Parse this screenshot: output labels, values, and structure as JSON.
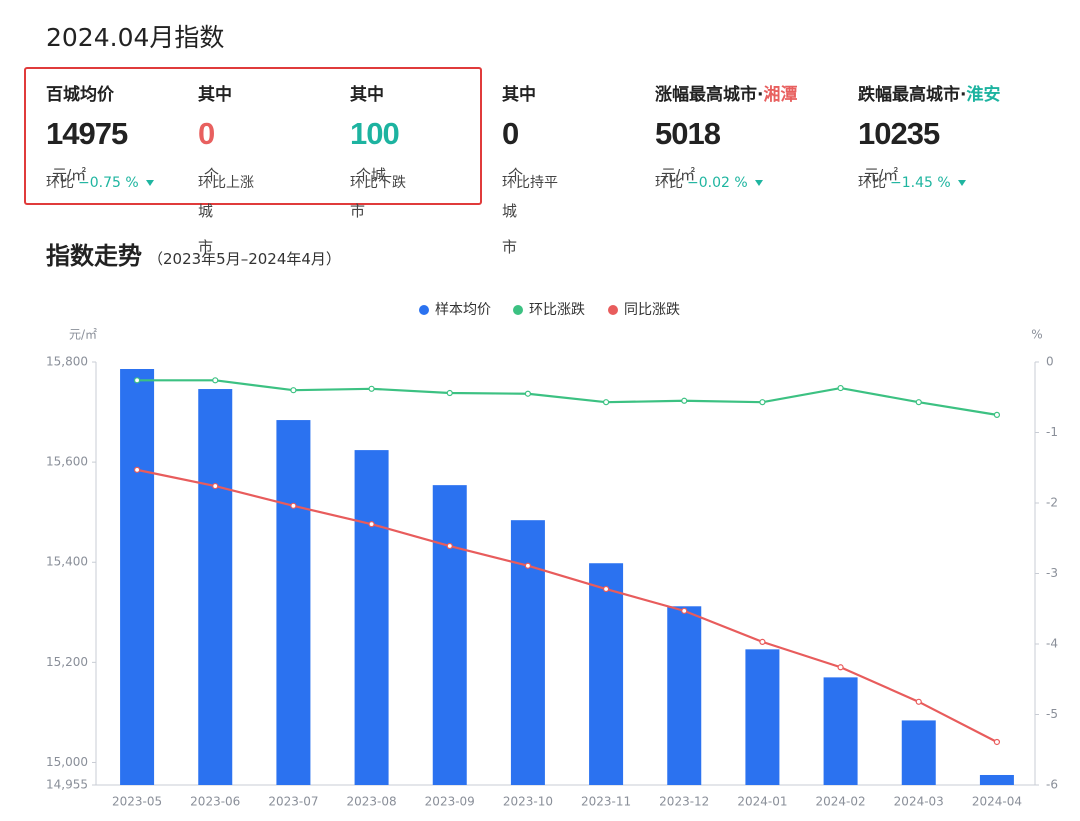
{
  "header": {
    "title": "2024.04月指数"
  },
  "stats": [
    {
      "label": "百城均价",
      "value": "14975",
      "unit": "元/㎡",
      "note": "环比",
      "change": "−0.75 %"
    },
    {
      "label": "其中",
      "value": "0",
      "unit": "个城市",
      "note": "环比上涨"
    },
    {
      "label": "其中",
      "value": "100",
      "unit": "个城市",
      "note": "环比下跌"
    },
    {
      "label": "其中",
      "value": "0",
      "unit": "个城市",
      "note": "环比持平"
    },
    {
      "label": "涨幅最高城市·",
      "city": "湘潭",
      "value": "5018",
      "unit": "元/㎡",
      "note": "环比",
      "change": "−0.02 %"
    },
    {
      "label": "跌幅最高城市·",
      "city": "淮安",
      "value": "10235",
      "unit": "元/㎡",
      "note": "环比",
      "change": "−1.45 %"
    }
  ],
  "section": {
    "title": "指数走势",
    "subtitle": "（2023年5月–2024年4月）"
  },
  "chart_data": {
    "type": "combo",
    "ylabel": "元/㎡",
    "y2label": "%",
    "categories": [
      "2023-05",
      "2023-06",
      "2023-07",
      "2023-08",
      "2023-09",
      "2023-10",
      "2023-11",
      "2023-12",
      "2024-01",
      "2024-02",
      "2024-03",
      "2024-04"
    ],
    "series": [
      {
        "name": "样本均价",
        "type": "bar",
        "color": "#2b72f0",
        "values": [
          15786,
          15746,
          15684,
          15624,
          15554,
          15484,
          15398,
          15312,
          15226,
          15170,
          15084,
          14975
        ]
      },
      {
        "name": "环比涨跌",
        "type": "line",
        "axis": "y2",
        "color": "#3cc182",
        "values": [
          -0.26,
          -0.26,
          -0.4,
          -0.38,
          -0.44,
          -0.45,
          -0.57,
          -0.55,
          -0.57,
          -0.37,
          -0.57,
          -0.75
        ]
      },
      {
        "name": "同比涨跌",
        "type": "line",
        "axis": "y2",
        "color": "#e85c5c",
        "values": [
          -1.53,
          -1.76,
          -2.04,
          -2.3,
          -2.61,
          -2.89,
          -3.22,
          -3.53,
          -3.97,
          -4.33,
          -4.82,
          -5.39
        ]
      }
    ],
    "ylim": [
      14955,
      15800
    ],
    "yticks": [
      {
        "value": 14955,
        "label": "14,955"
      },
      {
        "value": 15000,
        "label": "15,000"
      },
      {
        "value": 15200,
        "label": "15,200"
      },
      {
        "value": 15400,
        "label": "15,400"
      },
      {
        "value": 15600,
        "label": "15,600"
      },
      {
        "value": 15800,
        "label": "15,800"
      }
    ],
    "y2lim": [
      -6,
      0
    ],
    "y2ticks": [
      0,
      -1,
      -2,
      -3,
      -4,
      -5,
      -6
    ],
    "grid": false
  }
}
